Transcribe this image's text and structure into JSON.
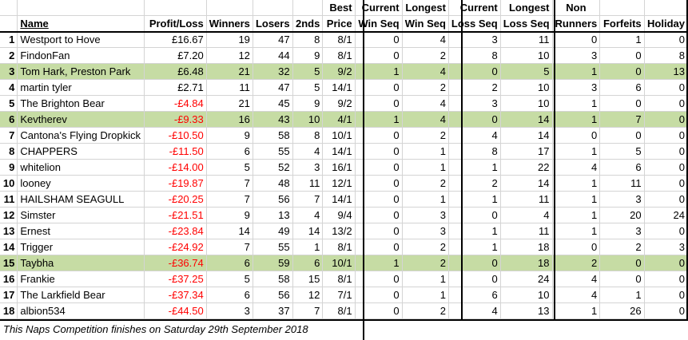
{
  "headers": {
    "row1": {
      "best": "Best",
      "current_win": "Current",
      "longest_win": "Longest",
      "current_loss": "Current",
      "longest_loss": "Longest",
      "non": "Non"
    },
    "row2": {
      "name": "Name",
      "profit": "Profit/Loss",
      "winners": "Winners",
      "losers": "Losers",
      "seconds": "2nds",
      "price": "Price",
      "win_seq": "Win Seq",
      "win_seq2": "Win Seq",
      "loss_seq": "Loss Seq",
      "loss_seq2": "Loss Seq",
      "runners": "Runners",
      "forfeits": "Forfeits",
      "holiday": "Holiday"
    }
  },
  "rows": [
    {
      "rank": "1",
      "name": "Westport to Hove",
      "profit": "£16.67",
      "winners": "19",
      "losers": "47",
      "seconds": "8",
      "price": "8/1",
      "cur_win": "0",
      "long_win": "4",
      "cur_loss": "3",
      "long_loss": "11",
      "non_runners": "0",
      "forfeits": "1",
      "holiday": "0",
      "highlight": false,
      "negative": false
    },
    {
      "rank": "2",
      "name": "FindonFan",
      "profit": "£7.20",
      "winners": "12",
      "losers": "44",
      "seconds": "9",
      "price": "8/1",
      "cur_win": "0",
      "long_win": "2",
      "cur_loss": "8",
      "long_loss": "10",
      "non_runners": "3",
      "forfeits": "0",
      "holiday": "8",
      "highlight": false,
      "negative": false
    },
    {
      "rank": "3",
      "name": "Tom Hark, Preston Park",
      "profit": "£6.48",
      "winners": "21",
      "losers": "32",
      "seconds": "5",
      "price": "9/2",
      "cur_win": "1",
      "long_win": "4",
      "cur_loss": "0",
      "long_loss": "5",
      "non_runners": "1",
      "forfeits": "0",
      "holiday": "13",
      "highlight": true,
      "negative": false
    },
    {
      "rank": "4",
      "name": "martin tyler",
      "profit": "£2.71",
      "winners": "11",
      "losers": "47",
      "seconds": "5",
      "price": "14/1",
      "cur_win": "0",
      "long_win": "2",
      "cur_loss": "2",
      "long_loss": "10",
      "non_runners": "3",
      "forfeits": "6",
      "holiday": "0",
      "highlight": false,
      "negative": false
    },
    {
      "rank": "5",
      "name": "The Brighton Bear",
      "profit": "-£4.84",
      "winners": "21",
      "losers": "45",
      "seconds": "9",
      "price": "9/2",
      "cur_win": "0",
      "long_win": "4",
      "cur_loss": "3",
      "long_loss": "10",
      "non_runners": "1",
      "forfeits": "0",
      "holiday": "0",
      "highlight": false,
      "negative": true
    },
    {
      "rank": "6",
      "name": "Kevtherev",
      "profit": "-£9.33",
      "winners": "16",
      "losers": "43",
      "seconds": "10",
      "price": "4/1",
      "cur_win": "1",
      "long_win": "4",
      "cur_loss": "0",
      "long_loss": "14",
      "non_runners": "1",
      "forfeits": "7",
      "holiday": "0",
      "highlight": true,
      "negative": true
    },
    {
      "rank": "7",
      "name": "Cantona's Flying Dropkick",
      "profit": "-£10.50",
      "winners": "9",
      "losers": "58",
      "seconds": "8",
      "price": "10/1",
      "cur_win": "0",
      "long_win": "2",
      "cur_loss": "4",
      "long_loss": "14",
      "non_runners": "0",
      "forfeits": "0",
      "holiday": "0",
      "highlight": false,
      "negative": true
    },
    {
      "rank": "8",
      "name": "CHAPPERS",
      "profit": "-£11.50",
      "winners": "6",
      "losers": "55",
      "seconds": "4",
      "price": "14/1",
      "cur_win": "0",
      "long_win": "1",
      "cur_loss": "8",
      "long_loss": "17",
      "non_runners": "1",
      "forfeits": "5",
      "holiday": "0",
      "highlight": false,
      "negative": true
    },
    {
      "rank": "9",
      "name": "whitelion",
      "profit": "-£14.00",
      "winners": "5",
      "losers": "52",
      "seconds": "3",
      "price": "16/1",
      "cur_win": "0",
      "long_win": "1",
      "cur_loss": "1",
      "long_loss": "22",
      "non_runners": "4",
      "forfeits": "6",
      "holiday": "0",
      "highlight": false,
      "negative": true
    },
    {
      "rank": "10",
      "name": "looney",
      "profit": "-£19.87",
      "winners": "7",
      "losers": "48",
      "seconds": "11",
      "price": "12/1",
      "cur_win": "0",
      "long_win": "2",
      "cur_loss": "2",
      "long_loss": "14",
      "non_runners": "1",
      "forfeits": "11",
      "holiday": "0",
      "highlight": false,
      "negative": true
    },
    {
      "rank": "11",
      "name": "HAILSHAM SEAGULL",
      "profit": "-£20.25",
      "winners": "7",
      "losers": "56",
      "seconds": "7",
      "price": "14/1",
      "cur_win": "0",
      "long_win": "1",
      "cur_loss": "1",
      "long_loss": "11",
      "non_runners": "1",
      "forfeits": "3",
      "holiday": "0",
      "highlight": false,
      "negative": true
    },
    {
      "rank": "12",
      "name": "Simster",
      "profit": "-£21.51",
      "winners": "9",
      "losers": "13",
      "seconds": "4",
      "price": "9/4",
      "cur_win": "0",
      "long_win": "3",
      "cur_loss": "0",
      "long_loss": "4",
      "non_runners": "1",
      "forfeits": "20",
      "holiday": "24",
      "highlight": false,
      "negative": true
    },
    {
      "rank": "13",
      "name": "Ernest",
      "profit": "-£23.84",
      "winners": "14",
      "losers": "49",
      "seconds": "14",
      "price": "13/2",
      "cur_win": "0",
      "long_win": "3",
      "cur_loss": "1",
      "long_loss": "11",
      "non_runners": "1",
      "forfeits": "3",
      "holiday": "0",
      "highlight": false,
      "negative": true
    },
    {
      "rank": "14",
      "name": "Trigger",
      "profit": "-£24.92",
      "winners": "7",
      "losers": "55",
      "seconds": "1",
      "price": "8/1",
      "cur_win": "0",
      "long_win": "2",
      "cur_loss": "1",
      "long_loss": "18",
      "non_runners": "0",
      "forfeits": "2",
      "holiday": "3",
      "highlight": false,
      "negative": true
    },
    {
      "rank": "15",
      "name": "Taybha",
      "profit": "-£36.74",
      "winners": "6",
      "losers": "59",
      "seconds": "6",
      "price": "10/1",
      "cur_win": "1",
      "long_win": "2",
      "cur_loss": "0",
      "long_loss": "18",
      "non_runners": "2",
      "forfeits": "0",
      "holiday": "0",
      "highlight": true,
      "negative": true
    },
    {
      "rank": "16",
      "name": "Frankie",
      "profit": "-£37.25",
      "winners": "5",
      "losers": "58",
      "seconds": "15",
      "price": "8/1",
      "cur_win": "0",
      "long_win": "1",
      "cur_loss": "0",
      "long_loss": "24",
      "non_runners": "4",
      "forfeits": "0",
      "holiday": "0",
      "highlight": false,
      "negative": true
    },
    {
      "rank": "17",
      "name": "The Larkfield Bear",
      "profit": "-£37.34",
      "winners": "6",
      "losers": "56",
      "seconds": "12",
      "price": "7/1",
      "cur_win": "0",
      "long_win": "1",
      "cur_loss": "6",
      "long_loss": "10",
      "non_runners": "4",
      "forfeits": "1",
      "holiday": "0",
      "highlight": false,
      "negative": true
    },
    {
      "rank": "18",
      "name": "albion534",
      "profit": "-£44.50",
      "winners": "3",
      "losers": "37",
      "seconds": "7",
      "price": "8/1",
      "cur_win": "0",
      "long_win": "2",
      "cur_loss": "4",
      "long_loss": "13",
      "non_runners": "1",
      "forfeits": "26",
      "holiday": "0",
      "highlight": false,
      "negative": true
    }
  ],
  "footer": "This Naps Competition finishes on Saturday 29th September 2018",
  "colors": {
    "highlight": "#c6dca4",
    "negative": "#ff0000",
    "grid": "#d4d4d4"
  }
}
